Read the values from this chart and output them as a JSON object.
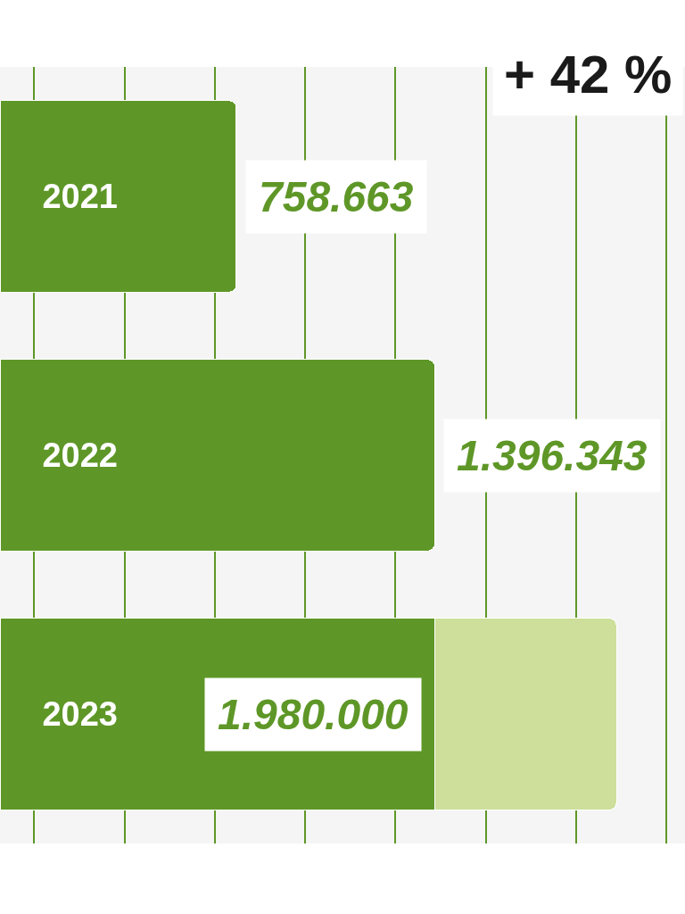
{
  "chart_data": {
    "type": "bar",
    "orientation": "horizontal",
    "stacked": true,
    "categories": [
      "2021",
      "2022",
      "2023"
    ],
    "series": [
      {
        "color": "#5e9727",
        "values": [
          758663,
          1396343,
          1396343
        ],
        "value_labels": [
          "758.663",
          "1.396.343",
          null
        ]
      },
      {
        "color": "#cddf9b",
        "values": [
          null,
          null,
          583657
        ]
      }
    ],
    "totals": [
      null,
      null,
      "1.980.000"
    ],
    "xlim": [
      0,
      2200000
    ],
    "xticks": [
      {
        "value": 110000,
        "label": null
      },
      {
        "value": 400000,
        "label": null
      },
      {
        "value": 690000,
        "label": null
      },
      {
        "value": 980000,
        "label": null
      },
      {
        "value": 1270000,
        "label": null
      },
      {
        "value": 1560000,
        "label": null
      },
      {
        "value": 1850000,
        "label": null
      },
      {
        "value": 2140000,
        "label": null
      }
    ],
    "grid": "x",
    "tick_labels": "y",
    "annotations": [
      "+ 42 %"
    ]
  }
}
